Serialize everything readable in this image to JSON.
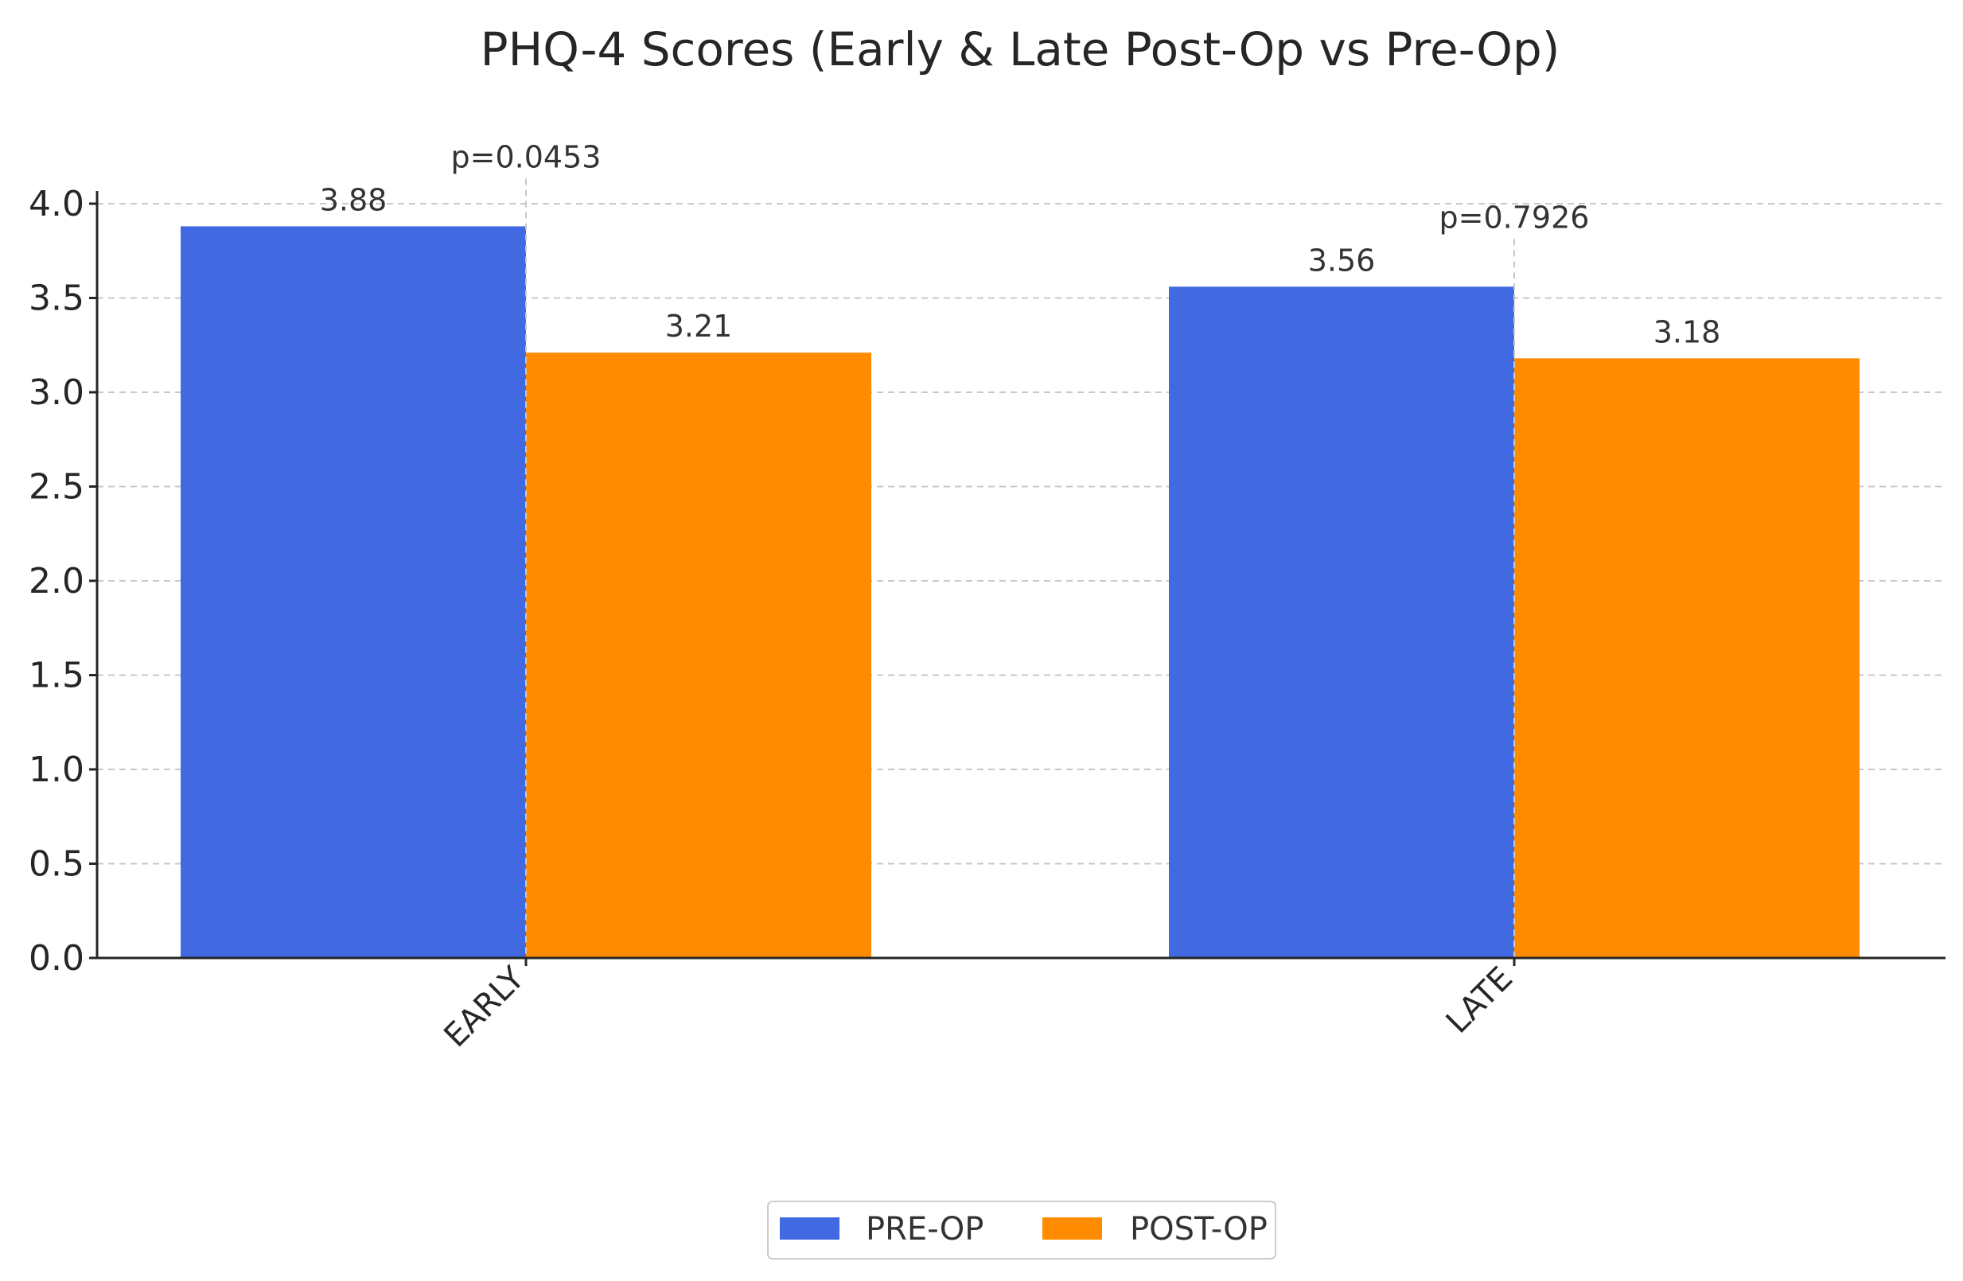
{
  "chart_data": {
    "type": "bar",
    "title": "PHQ-4 Scores (Early & Late Post-Op vs Pre-Op)",
    "xlabel": "",
    "ylabel": "",
    "categories": [
      "EARLY",
      "LATE"
    ],
    "series": [
      {
        "name": "PRE-OP",
        "values": [
          3.88,
          3.56
        ],
        "color": "#4169E1"
      },
      {
        "name": "POST-OP",
        "values": [
          3.21,
          3.18
        ],
        "color": "#FF8C00"
      }
    ],
    "value_labels": [
      [
        "3.88",
        "3.56"
      ],
      [
        "3.21",
        "3.18"
      ]
    ],
    "annotations": [
      "p=0.0453",
      "p=0.7926"
    ],
    "ylim": [
      0,
      4.0
    ],
    "yticks": [
      "0.0",
      "0.5",
      "1.0",
      "1.5",
      "2.0",
      "2.5",
      "3.0",
      "3.5",
      "4.0"
    ],
    "grid": true,
    "legend_position": "bottom-center"
  }
}
